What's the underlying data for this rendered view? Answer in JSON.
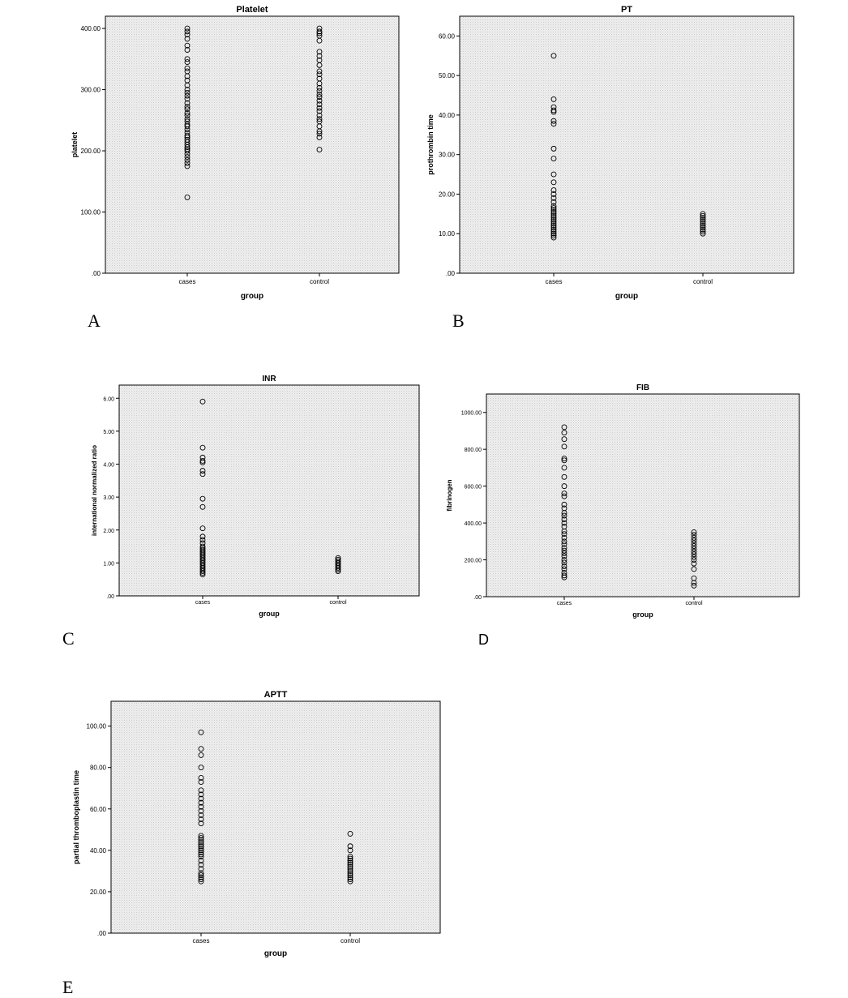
{
  "panel_letters": [
    "A",
    "B",
    "C",
    "D",
    "E"
  ],
  "chart_data": [
    {
      "type": "scatter",
      "title": "Platelet",
      "xlabel": "group",
      "ylabel": "platelet",
      "categories": [
        "cases",
        "control"
      ],
      "ylim": [
        0,
        420
      ],
      "yticks": [
        0,
        100,
        200,
        300,
        400
      ],
      "ytick_labels": [
        ".00",
        "100.00",
        "200.00",
        "300.00",
        "400.00"
      ],
      "grid": false,
      "series": [
        {
          "category": "cases",
          "values": [
            400,
            395,
            390,
            383,
            372,
            365,
            350,
            345,
            335,
            330,
            322,
            315,
            307,
            300,
            295,
            290,
            285,
            278,
            272,
            268,
            262,
            258,
            252,
            248,
            243,
            240,
            235,
            230,
            225,
            222,
            218,
            214,
            210,
            206,
            203,
            200,
            195,
            190,
            185,
            180,
            175,
            124
          ]
        },
        {
          "category": "control",
          "values": [
            400,
            395,
            392,
            388,
            380,
            362,
            355,
            348,
            340,
            330,
            325,
            318,
            310,
            303,
            298,
            292,
            288,
            282,
            276,
            270,
            265,
            258,
            252,
            248,
            240,
            232,
            228,
            222,
            202
          ]
        }
      ]
    },
    {
      "type": "scatter",
      "title": "PT",
      "xlabel": "group",
      "ylabel": "prothrombin time",
      "categories": [
        "cases",
        "control"
      ],
      "ylim": [
        0,
        65
      ],
      "yticks": [
        0,
        10,
        20,
        30,
        40,
        50,
        60
      ],
      "ytick_labels": [
        ".00",
        "10.00",
        "20.00",
        "30.00",
        "40.00",
        "50.00",
        "60.00"
      ],
      "grid": false,
      "series": [
        {
          "category": "cases",
          "values": [
            55,
            44,
            42,
            41.2,
            40.8,
            38.5,
            37.8,
            31.5,
            29,
            25,
            23,
            21,
            20,
            19,
            18,
            17,
            16.5,
            16,
            15.5,
            15,
            14.5,
            14,
            13.5,
            13,
            12.5,
            12,
            11.5,
            11,
            10.5,
            10,
            9.5,
            9
          ]
        },
        {
          "category": "control",
          "values": [
            15,
            14.5,
            14,
            13.5,
            13,
            12.5,
            12,
            11.5,
            11,
            10.5,
            10
          ]
        }
      ]
    },
    {
      "type": "scatter",
      "title": "INR",
      "xlabel": "group",
      "ylabel": "international normalized ratio",
      "categories": [
        "cases",
        "control"
      ],
      "ylim": [
        0,
        6.4
      ],
      "yticks": [
        0,
        1,
        2,
        3,
        4,
        5,
        6
      ],
      "ytick_labels": [
        ".00",
        "1.00",
        "2.00",
        "3.00",
        "4.00",
        "5.00",
        "6.00"
      ],
      "grid": false,
      "series": [
        {
          "category": "cases",
          "values": [
            5.9,
            4.5,
            4.2,
            4.1,
            4.05,
            3.8,
            3.7,
            2.95,
            2.7,
            2.05,
            1.8,
            1.7,
            1.6,
            1.5,
            1.45,
            1.4,
            1.35,
            1.3,
            1.25,
            1.2,
            1.15,
            1.1,
            1.05,
            1.0,
            0.95,
            0.9,
            0.85,
            0.8,
            0.75,
            0.7,
            0.65
          ]
        },
        {
          "category": "control",
          "values": [
            1.15,
            1.1,
            1.05,
            1.0,
            0.95,
            0.9,
            0.85,
            0.8,
            0.75
          ]
        }
      ]
    },
    {
      "type": "scatter",
      "title": "FIB",
      "xlabel": "group",
      "ylabel": "fibrinogen",
      "categories": [
        "cases",
        "control"
      ],
      "ylim": [
        0,
        1100
      ],
      "yticks": [
        0,
        200,
        400,
        600,
        800,
        1000
      ],
      "ytick_labels": [
        ".00",
        "200.00",
        "400.00",
        "600.00",
        "800.00",
        "1000.00"
      ],
      "grid": false,
      "series": [
        {
          "category": "cases",
          "values": [
            920,
            890,
            855,
            815,
            750,
            740,
            700,
            650,
            600,
            560,
            545,
            500,
            480,
            455,
            440,
            420,
            400,
            380,
            355,
            340,
            320,
            300,
            285,
            265,
            250,
            235,
            220,
            200,
            185,
            165,
            150,
            130,
            115,
            105
          ]
        },
        {
          "category": "control",
          "values": [
            350,
            335,
            320,
            305,
            290,
            275,
            260,
            245,
            230,
            215,
            200,
            180,
            150,
            100,
            75,
            60
          ]
        }
      ]
    },
    {
      "type": "scatter",
      "title": "APTT",
      "xlabel": "group",
      "ylabel": "partial thromboplastin time",
      "categories": [
        "cases",
        "control"
      ],
      "ylim": [
        0,
        112
      ],
      "yticks": [
        0,
        20,
        40,
        60,
        80,
        100
      ],
      "ytick_labels": [
        ".00",
        "20.00",
        "40.00",
        "60.00",
        "80.00",
        "100.00"
      ],
      "grid": false,
      "series": [
        {
          "category": "cases",
          "values": [
            97,
            89,
            86,
            80,
            75,
            73,
            69,
            67,
            65,
            63,
            61,
            59,
            57,
            55,
            53,
            47,
            46,
            45,
            44,
            43,
            42,
            41,
            40,
            39,
            38,
            37,
            35,
            33,
            31,
            29,
            28,
            27,
            26,
            25
          ]
        },
        {
          "category": "control",
          "values": [
            48,
            42,
            40,
            37,
            36,
            35,
            34,
            33,
            32,
            31,
            30,
            29,
            28,
            27,
            26,
            25
          ]
        }
      ]
    }
  ]
}
